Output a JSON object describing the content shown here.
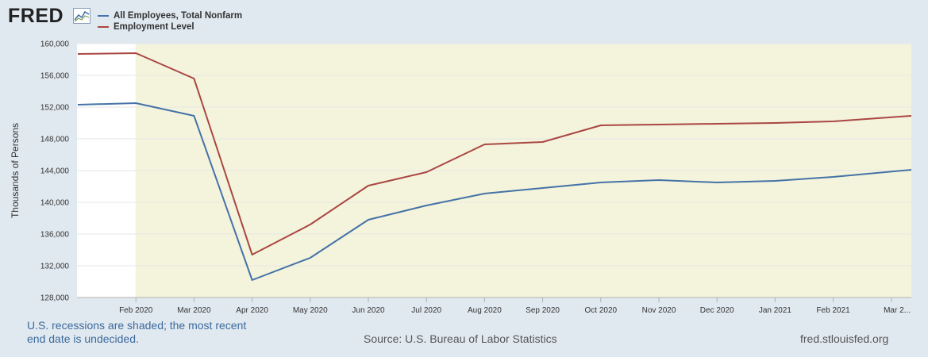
{
  "brand": {
    "logo_text": "FRED",
    "logo_icon": "fred-chart-icon"
  },
  "footer": {
    "note": "U.S. recessions are shaded; the most recent end date is undecided.",
    "source": "Source: U.S. Bureau of Labor Statistics",
    "url": "fred.stlouisfed.org"
  },
  "chart_data": {
    "type": "line",
    "ylabel": "Thousands of Persons",
    "ylim": [
      128000,
      160000
    ],
    "yticks": [
      128000,
      132000,
      136000,
      140000,
      144000,
      148000,
      152000,
      156000,
      160000
    ],
    "ytick_labels": [
      "128,000",
      "132,000",
      "136,000",
      "140,000",
      "144,000",
      "148,000",
      "152,000",
      "156,000",
      "160,000"
    ],
    "x": [
      "2020-01",
      "2020-02",
      "2020-03",
      "2020-04",
      "2020-05",
      "2020-06",
      "2020-07",
      "2020-08",
      "2020-09",
      "2020-10",
      "2020-11",
      "2020-12",
      "2021-01",
      "2021-02",
      "2021-03"
    ],
    "xtick_labels": [
      "Feb 2020",
      "Mar 2020",
      "Apr 2020",
      "May 2020",
      "Jun 2020",
      "Jul 2020",
      "Aug 2020",
      "Sep 2020",
      "Oct 2020",
      "Nov 2020",
      "Dec 2020",
      "Jan 2021",
      "Feb 2021",
      "Mar 2..."
    ],
    "recession_shading": {
      "start": "2020-02",
      "end": "2021-03",
      "color": "#f4f4dc"
    },
    "grid": true,
    "legend_position": "top-left",
    "series": [
      {
        "name": "All Employees, Total Nonfarm",
        "color": "#4572a7",
        "values": [
          152300,
          152500,
          150900,
          130200,
          133000,
          137800,
          139600,
          141100,
          141800,
          142500,
          142800,
          142500,
          142700,
          143200,
          144100
        ]
      },
      {
        "name": "Employment Level",
        "color": "#aa4643",
        "values": [
          158700,
          158800,
          155600,
          133400,
          137200,
          142100,
          143800,
          147300,
          147600,
          149700,
          149800,
          149900,
          150000,
          150200,
          150900
        ]
      }
    ]
  }
}
